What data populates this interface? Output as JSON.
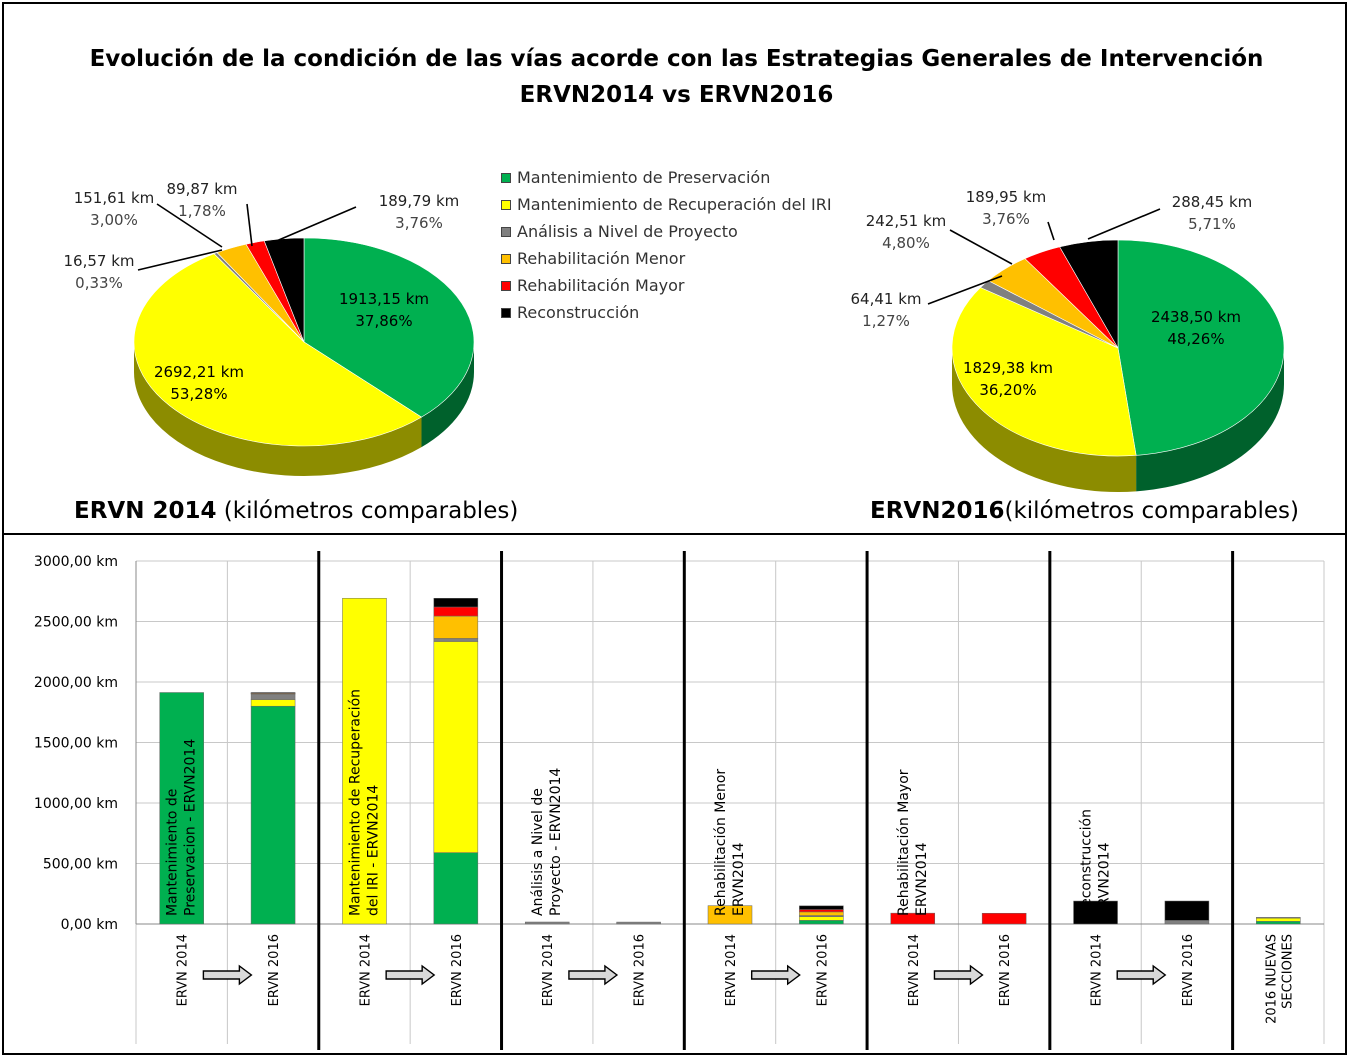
{
  "title": {
    "line1": "Evolución de la condición de las vías acorde con las Estrategias Generales de Intervención",
    "line2": "ERVN2014 vs ERVN2016"
  },
  "legend": [
    {
      "label": "Mantenimiento de Preservación",
      "color": "#00b050"
    },
    {
      "label": "Mantenimiento de Recuperación del IRI",
      "color": "#ffff00"
    },
    {
      "label": "Análisis a Nivel de Proyecto",
      "color": "#808080"
    },
    {
      "label": "Rehabilitación Menor",
      "color": "#ffc000"
    },
    {
      "label": "Rehabilitación Mayor",
      "color": "#ff0000"
    },
    {
      "label": "Reconstrucción",
      "color": "#000000"
    }
  ],
  "captions": {
    "pie2014_bold": "ERVN 2014",
    "pie2014_rest": " (kilómetros comparables)",
    "pie2016_bold": "ERVN2016",
    "pie2016_rest": "(kilómetros comparables)"
  },
  "chart_data": [
    {
      "type": "pie",
      "title": "ERVN 2014 (kilómetros comparables)",
      "slices": [
        {
          "label": "Mantenimiento de Preservación",
          "km": "1913,15 km",
          "pct": "37,86%",
          "value": 37.86,
          "color": "#00b050"
        },
        {
          "label": "Mantenimiento de Recuperación del IRI",
          "km": "2692,21 km",
          "pct": "53,28%",
          "value": 53.28,
          "color": "#ffff00"
        },
        {
          "label": "Análisis a Nivel de Proyecto",
          "km": "16,57 km",
          "pct": "0,33%",
          "value": 0.33,
          "color": "#808080"
        },
        {
          "label": "Rehabilitación Menor",
          "km": "151,61 km",
          "pct": "3,00%",
          "value": 3.0,
          "color": "#ffc000"
        },
        {
          "label": "Rehabilitación Mayor",
          "km": "89,87 km",
          "pct": "1,78%",
          "value": 1.78,
          "color": "#ff0000"
        },
        {
          "label": "Reconstrucción",
          "km": "189,79 km",
          "pct": "3,76%",
          "value": 3.76,
          "color": "#000000"
        }
      ]
    },
    {
      "type": "pie",
      "title": "ERVN2016(kilómetros comparables)",
      "slices": [
        {
          "label": "Mantenimiento de Preservación",
          "km": "2438,50 km",
          "pct": "48,26%",
          "value": 48.26,
          "color": "#00b050"
        },
        {
          "label": "Mantenimiento de Recuperación del IRI",
          "km": "1829,38 km",
          "pct": "36,20%",
          "value": 36.2,
          "color": "#ffff00"
        },
        {
          "label": "Análisis a Nivel de Proyecto",
          "km": "64,41 km",
          "pct": "1,27%",
          "value": 1.27,
          "color": "#808080"
        },
        {
          "label": "Rehabilitación Menor",
          "km": "242,51 km",
          "pct": "4,80%",
          "value": 4.8,
          "color": "#ffc000"
        },
        {
          "label": "Rehabilitación Mayor",
          "km": "189,95 km",
          "pct": "3,76%",
          "value": 3.76,
          "color": "#ff0000"
        },
        {
          "label": "Reconstrucción",
          "km": "288,45 km",
          "pct": "5,71%",
          "value": 5.71,
          "color": "#000000"
        }
      ]
    },
    {
      "type": "bar",
      "stacked": true,
      "ylim": [
        0,
        3000
      ],
      "yticks": [
        {
          "value": 0,
          "label": "0,00 km"
        },
        {
          "value": 500,
          "label": "500,00 km"
        },
        {
          "value": 1000,
          "label": "1000,00 km"
        },
        {
          "value": 1500,
          "label": "1500,00 km"
        },
        {
          "value": 2000,
          "label": "2000,00 km"
        },
        {
          "value": 2500,
          "label": "2500,00 km"
        },
        {
          "value": 3000,
          "label": "3000,00 km"
        }
      ],
      "grid": true,
      "categories": [
        "ERVN 2014",
        "ERVN 2016",
        "ERVN 2014",
        "ERVN 2016",
        "ERVN 2014",
        "ERVN 2016",
        "ERVN 2014",
        "ERVN 2016",
        "ERVN 2014",
        "ERVN 2016",
        "ERVN 2014",
        "ERVN 2016",
        "2016 NUEVAS SECCIONES"
      ],
      "bar_labels": [
        "Mantenimiento de Preservacion - ERVN2014",
        "",
        "Mantenimiento de Recuperación del IRI - ERVN2014",
        "",
        "Análisis a Nivel de Proyecto - ERVN2014",
        "",
        "Rehabilitación Menor ERVN2014",
        "",
        "Rehabilitación Mayor ERVN2014",
        "",
        "Reconstrucción ERVN2014",
        "",
        ""
      ],
      "stacks": [
        [
          {
            "color": "#00b050",
            "value": 1913.15
          }
        ],
        [
          {
            "color": "#00b050",
            "value": 1800
          },
          {
            "color": "#ffff00",
            "value": 55
          },
          {
            "color": "#808080",
            "value": 45
          },
          {
            "color": "#ffc000",
            "value": 8
          },
          {
            "color": "#ff0000",
            "value": 3
          },
          {
            "color": "#000000",
            "value": 2
          }
        ],
        [
          {
            "color": "#ffff00",
            "value": 2692.21
          }
        ],
        [
          {
            "color": "#00b050",
            "value": 590
          },
          {
            "color": "#ffff00",
            "value": 1745
          },
          {
            "color": "#808080",
            "value": 25
          },
          {
            "color": "#ffc000",
            "value": 185
          },
          {
            "color": "#ff0000",
            "value": 75
          },
          {
            "color": "#000000",
            "value": 72
          }
        ],
        [
          {
            "color": "#808080",
            "value": 16.57
          }
        ],
        [
          {
            "color": "#808080",
            "value": 16
          }
        ],
        [
          {
            "color": "#ffc000",
            "value": 151.61
          }
        ],
        [
          {
            "color": "#00b050",
            "value": 30
          },
          {
            "color": "#ffff00",
            "value": 30
          },
          {
            "color": "#808080",
            "value": 10
          },
          {
            "color": "#ffc000",
            "value": 30
          },
          {
            "color": "#ff0000",
            "value": 20
          },
          {
            "color": "#000000",
            "value": 30
          }
        ],
        [
          {
            "color": "#ff0000",
            "value": 89.87
          }
        ],
        [
          {
            "color": "#ff0000",
            "value": 89
          }
        ],
        [
          {
            "color": "#000000",
            "value": 189.79
          }
        ],
        [
          {
            "color": "#808080",
            "value": 30
          },
          {
            "color": "#000000",
            "value": 160
          }
        ],
        [
          {
            "color": "#00b050",
            "value": 22
          },
          {
            "color": "#ffff00",
            "value": 28
          },
          {
            "color": "#808080",
            "value": 5
          }
        ]
      ]
    }
  ]
}
